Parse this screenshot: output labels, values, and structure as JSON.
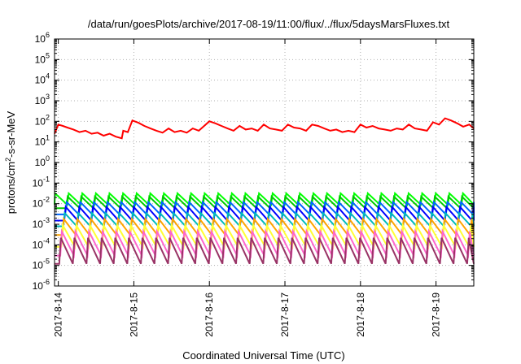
{
  "chart_data": {
    "type": "line",
    "title": "/data/run/goesPlots/archive/2017-08-19/11:00/flux/../flux/5daysMarsFluxes.txt",
    "xlabel": "Coordinated Universal Time (UTC)",
    "ylabel": {
      "pre": "protons/cm",
      "sup": "2",
      "post": "-s-sr-MeV"
    },
    "yscale": "log",
    "ylim_exp": [
      -6,
      6
    ],
    "y_tick_exps": [
      -6,
      -5,
      -4,
      -3,
      -2,
      -1,
      0,
      1,
      2,
      3,
      4,
      5,
      6
    ],
    "x_ticks": [
      "2017-8-14",
      "2017-8-15",
      "2017-8-16",
      "2017-8-17",
      "2017-8-18",
      "2017-8-19"
    ],
    "x_range_days": [
      13.95,
      19.5
    ],
    "grid": true,
    "series": [
      {
        "color": "#ff0000",
        "x": [
          13.95,
          14.0,
          14.06,
          14.12,
          14.2,
          14.28,
          14.36,
          14.44,
          14.52,
          14.6,
          14.68,
          14.76,
          14.84,
          14.86,
          14.92,
          14.98,
          15.06,
          15.14,
          15.22,
          15.3,
          15.38,
          15.46,
          15.54,
          15.62,
          15.7,
          15.78,
          15.86,
          15.92,
          16.0,
          16.08,
          16.16,
          16.24,
          16.32,
          16.4,
          16.48,
          16.56,
          16.64,
          16.72,
          16.8,
          16.88,
          16.96,
          17.04,
          17.12,
          17.2,
          17.28,
          17.36,
          17.44,
          17.52,
          17.6,
          17.68,
          17.76,
          17.84,
          17.92,
          18.0,
          18.08,
          18.16,
          18.24,
          18.32,
          18.4,
          18.48,
          18.56,
          18.64,
          18.72,
          18.8,
          18.88,
          18.96,
          19.04,
          19.12,
          19.2,
          19.28,
          19.36,
          19.44,
          19.5
        ],
        "y": [
          25,
          70,
          60,
          50,
          40,
          30,
          35,
          25,
          28,
          20,
          25,
          18,
          15,
          35,
          30,
          110,
          85,
          60,
          45,
          35,
          28,
          45,
          30,
          35,
          28,
          45,
          35,
          55,
          100,
          80,
          60,
          45,
          35,
          60,
          40,
          45,
          35,
          70,
          45,
          40,
          35,
          70,
          50,
          45,
          35,
          70,
          60,
          45,
          35,
          40,
          30,
          35,
          30,
          70,
          50,
          60,
          45,
          40,
          35,
          45,
          40,
          70,
          45,
          40,
          35,
          90,
          70,
          140,
          110,
          80,
          55,
          70,
          45
        ]
      },
      {
        "color": "#00ff00",
        "base": 0.009,
        "peak": 0.032
      },
      {
        "color": "#00cc00",
        "base": 0.006,
        "peak": 0.022
      },
      {
        "color": "#0066ff",
        "base": 0.003,
        "peak": 0.012
      },
      {
        "color": "#0000ff",
        "base": 0.0015,
        "peak": 0.007
      },
      {
        "color": "#00bbbb",
        "base": 0.0008,
        "peak": 0.0035
      },
      {
        "color": "#ffa500",
        "base": 0.0003,
        "peak": 0.0018
      },
      {
        "color": "#ffff33",
        "base": 8e-05,
        "peak": 0.0009
      },
      {
        "color": "#ff66cc",
        "base": 3e-05,
        "peak": 0.00045
      },
      {
        "color": "#993366",
        "base": 1.2e-05,
        "peak": 0.00022
      }
    ]
  }
}
